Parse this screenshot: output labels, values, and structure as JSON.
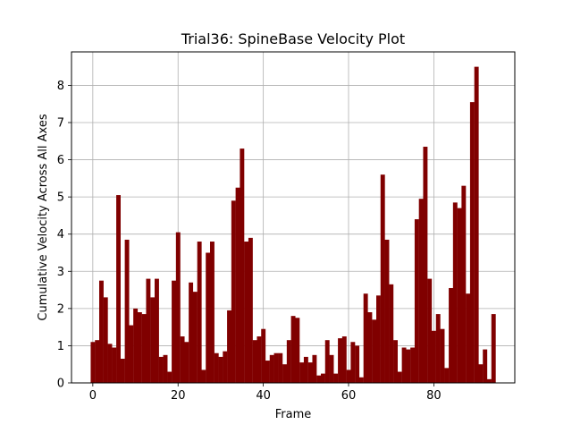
{
  "chart_data": {
    "type": "bar",
    "title": "Trial36: SpineBase Velocity Plot",
    "xlabel": "Frame",
    "ylabel": "Cumulative Velocity Across All Axes",
    "xlim": [
      -5,
      99
    ],
    "ylim": [
      0,
      8.9
    ],
    "xticks": [
      0,
      20,
      40,
      60,
      80
    ],
    "yticks": [
      0,
      1,
      2,
      3,
      4,
      5,
      6,
      7,
      8
    ],
    "grid": true,
    "bar_color": "#800000",
    "x": [
      0,
      1,
      2,
      3,
      4,
      5,
      6,
      7,
      8,
      9,
      10,
      11,
      12,
      13,
      14,
      15,
      16,
      17,
      18,
      19,
      20,
      21,
      22,
      23,
      24,
      25,
      26,
      27,
      28,
      29,
      30,
      31,
      32,
      33,
      34,
      35,
      36,
      37,
      38,
      39,
      40,
      41,
      42,
      43,
      44,
      45,
      46,
      47,
      48,
      49,
      50,
      51,
      52,
      53,
      54,
      55,
      56,
      57,
      58,
      59,
      60,
      61,
      62,
      63,
      64,
      65,
      66,
      67,
      68,
      69,
      70,
      71,
      72,
      73,
      74,
      75,
      76,
      77,
      78,
      79,
      80,
      81,
      82,
      83,
      84,
      85,
      86,
      87,
      88,
      89,
      90,
      91,
      92,
      93,
      94
    ],
    "values": [
      1.1,
      1.15,
      2.75,
      2.3,
      1.05,
      0.95,
      5.05,
      0.65,
      3.85,
      1.55,
      2.0,
      1.9,
      1.85,
      2.8,
      2.3,
      2.8,
      0.7,
      0.75,
      0.3,
      2.75,
      4.05,
      1.25,
      1.1,
      2.7,
      2.45,
      3.8,
      0.35,
      3.5,
      3.8,
      0.8,
      0.7,
      0.85,
      1.95,
      4.9,
      5.25,
      6.3,
      3.8,
      3.9,
      1.15,
      1.25,
      1.45,
      0.6,
      0.75,
      0.8,
      0.8,
      0.5,
      1.15,
      1.8,
      1.75,
      0.55,
      0.7,
      0.55,
      0.75,
      0.2,
      0.25,
      1.15,
      0.75,
      0.25,
      1.2,
      1.25,
      0.35,
      1.1,
      1.0,
      0.15,
      2.4,
      1.9,
      1.7,
      2.35,
      5.6,
      3.85,
      2.65,
      1.15,
      0.3,
      0.95,
      0.9,
      0.95,
      4.4,
      4.95,
      6.35,
      2.8,
      1.4,
      1.85,
      1.45,
      0.4,
      2.55,
      4.85,
      4.7,
      5.3,
      2.4,
      7.55,
      8.5,
      0.5,
      0.9,
      0.1,
      1.85
    ]
  }
}
